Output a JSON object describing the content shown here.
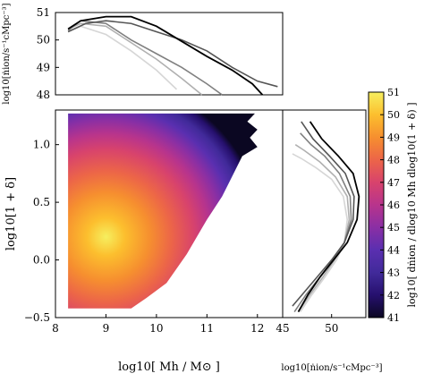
{
  "chart_data": [
    {
      "panel": "top",
      "type": "line",
      "ylabel": "log10[ṅion/s⁻¹cMpc⁻³]",
      "xlim": [
        8,
        12.5
      ],
      "ylim": [
        48,
        51
      ],
      "yticks": [
        "48",
        "49",
        "50",
        "51"
      ],
      "series": [
        {
          "color": "#000000",
          "x": [
            8.25,
            8.5,
            9.0,
            9.5,
            10.0,
            10.5,
            11.0,
            11.5,
            11.9,
            12.1
          ],
          "y": [
            50.4,
            50.7,
            50.85,
            50.85,
            50.5,
            49.95,
            49.4,
            48.9,
            48.4,
            48.0
          ]
        },
        {
          "color": "#555555",
          "x": [
            8.25,
            8.6,
            9.0,
            9.5,
            10.0,
            10.5,
            11.0,
            11.5,
            12.0,
            12.4
          ],
          "y": [
            50.3,
            50.6,
            50.7,
            50.6,
            50.3,
            50.0,
            49.6,
            49.0,
            48.5,
            48.3
          ]
        },
        {
          "color": "#808080",
          "x": [
            8.25,
            8.5,
            9.0,
            9.5,
            10.0,
            10.5,
            11.0,
            11.3
          ],
          "y": [
            50.35,
            50.7,
            50.6,
            50.0,
            49.5,
            49.0,
            48.4,
            48.0
          ]
        },
        {
          "color": "#b0b0b0",
          "x": [
            8.25,
            8.5,
            9.0,
            9.5,
            10.0,
            10.5,
            10.9
          ],
          "y": [
            50.4,
            50.6,
            50.5,
            49.9,
            49.3,
            48.6,
            48.0
          ]
        },
        {
          "color": "#d6d6d6",
          "x": [
            8.25,
            8.5,
            9.0,
            9.5,
            10.0,
            10.4
          ],
          "y": [
            50.3,
            50.5,
            50.2,
            49.6,
            48.9,
            48.2
          ]
        }
      ]
    },
    {
      "panel": "main",
      "type": "heatmap",
      "xlabel": "log10[ Mh / M⊙ ]",
      "ylabel": "log10[1 + δ]",
      "xlim": [
        8,
        12.5
      ],
      "ylim": [
        -0.5,
        1.3
      ],
      "xticks": [
        "8",
        "9",
        "10",
        "11",
        "12"
      ],
      "yticks": [
        "−0.5",
        "0.0",
        "0.5",
        "1.0"
      ],
      "peak": {
        "x": 9.0,
        "y": 0.2,
        "value": 51
      },
      "colormap": [
        "#0b0722",
        "#26106e",
        "#412a9a",
        "#5a2fb0",
        "#8a2fa4",
        "#b8348c",
        "#d8436c",
        "#ec6548",
        "#f68f2f",
        "#fcbf2e",
        "#f6ef5f"
      ],
      "color_range": [
        41,
        51
      ]
    },
    {
      "panel": "side",
      "type": "line",
      "xlabel": "log10[ṅion/s⁻¹cMpc⁻³]",
      "xlim": [
        45,
        53.5
      ],
      "xticks": [
        "45",
        "50"
      ],
      "series": [
        {
          "color": "#000000",
          "x": [
            46.6,
            47.6,
            48.8,
            50.2,
            51.6,
            52.6,
            52.8,
            52.2,
            50.7,
            49.0,
            47.8
          ],
          "y": [
            -0.45,
            -0.3,
            -0.15,
            0.0,
            0.15,
            0.35,
            0.55,
            0.75,
            0.9,
            1.05,
            1.2
          ]
        },
        {
          "color": "#555555",
          "x": [
            46.0,
            47.3,
            48.6,
            50.0,
            51.3,
            52.2,
            52.3,
            51.4,
            49.8,
            48.1,
            46.9
          ],
          "y": [
            -0.4,
            -0.27,
            -0.14,
            0.0,
            0.15,
            0.35,
            0.55,
            0.75,
            0.9,
            1.05,
            1.2
          ]
        },
        {
          "color": "#808080",
          "x": [
            46.2,
            47.4,
            48.8,
            50.1,
            51.3,
            52.0,
            51.9,
            50.8,
            49.3,
            47.9,
            46.8
          ],
          "y": [
            -0.45,
            -0.3,
            -0.15,
            0.0,
            0.15,
            0.35,
            0.55,
            0.75,
            0.9,
            1.0,
            1.1
          ]
        },
        {
          "color": "#b0b0b0",
          "x": [
            46.6,
            47.8,
            49.1,
            50.3,
            51.3,
            51.8,
            51.6,
            50.4,
            48.8,
            47.2,
            46.3
          ],
          "y": [
            -0.45,
            -0.3,
            -0.15,
            0.0,
            0.15,
            0.35,
            0.55,
            0.72,
            0.85,
            0.95,
            1.0
          ]
        },
        {
          "color": "#d6d6d6",
          "x": [
            46.8,
            48.0,
            49.3,
            50.5,
            51.3,
            51.6,
            51.2,
            50.0,
            48.4,
            46.9,
            46.0
          ],
          "y": [
            -0.45,
            -0.3,
            -0.15,
            0.0,
            0.15,
            0.35,
            0.55,
            0.7,
            0.8,
            0.88,
            0.92
          ]
        }
      ]
    },
    {
      "panel": "colorbar",
      "type": "heatmap",
      "label": "log10[ dṅion / dlog10 Mh dlog10(1 + δ) ]",
      "range": [
        41,
        51
      ],
      "ticks": [
        "41",
        "42",
        "43",
        "44",
        "45",
        "46",
        "47",
        "48",
        "49",
        "50",
        "51"
      ]
    }
  ]
}
